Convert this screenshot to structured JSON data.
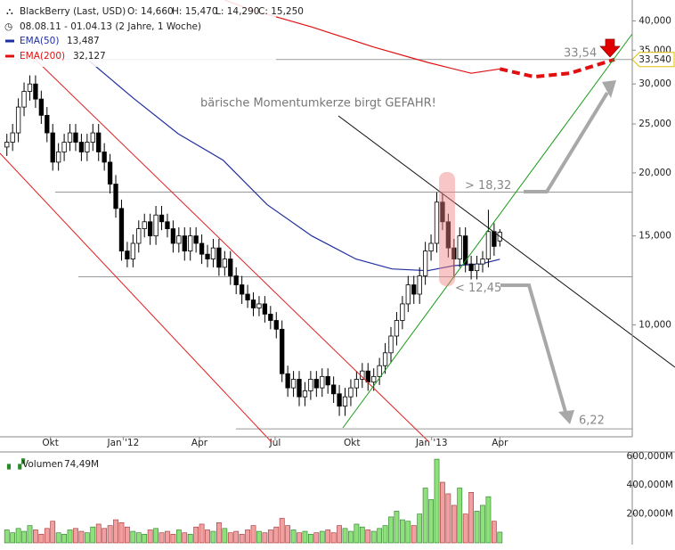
{
  "chart_data": {
    "type": "candlestick",
    "header": {
      "name": "BlackBerry (Last, USD)",
      "ohlc": [
        "O: 14,660",
        "H: 15,470",
        "L: 14,290",
        "C: 15,250"
      ],
      "range": "08.08.11 - 01.04.13 (2 Jahre, 1 Woche)"
    },
    "annotation": "bärische Momentumkerze birgt GEFAHR!",
    "log_scale": true,
    "xlim": [
      -1.2,
      109.1
    ],
    "ylim": [
      6.0,
      44
    ],
    "yticks": [
      {
        "value": 10,
        "label": "10,000"
      },
      {
        "value": 15,
        "label": "15,000"
      },
      {
        "value": 20,
        "label": "20,000"
      },
      {
        "value": 25,
        "label": "25,000"
      },
      {
        "value": 30,
        "label": "30,000"
      },
      {
        "value": 35,
        "label": "35,000"
      },
      {
        "value": 40,
        "label": "40,000"
      }
    ],
    "xticks": [
      {
        "value": 7.6,
        "label": "Okt"
      },
      {
        "value": 20.3,
        "label": "Jan '12"
      },
      {
        "value": 33.6,
        "label": "Apr"
      },
      {
        "value": 46.8,
        "label": "Jul"
      },
      {
        "value": 60.2,
        "label": "Okt"
      },
      {
        "value": 74.1,
        "label": "Jan '13"
      },
      {
        "value": 86,
        "label": "Apr"
      }
    ],
    "up_color": "#ffffff",
    "down_color": "#000000",
    "candles": [
      [
        22.5,
        23.9,
        21.6,
        23
      ],
      [
        23,
        25,
        22.1,
        24
      ],
      [
        24,
        28.1,
        23,
        27
      ],
      [
        27,
        30.2,
        25.9,
        29
      ],
      [
        29,
        31.2,
        27.8,
        30
      ],
      [
        30,
        31.2,
        26.9,
        28
      ],
      [
        28,
        29.1,
        25,
        26
      ],
      [
        26,
        27,
        23,
        24
      ],
      [
        24,
        25,
        20.2,
        21
      ],
      [
        21,
        22.9,
        20.2,
        22
      ],
      [
        22,
        23.9,
        21.1,
        23
      ],
      [
        23,
        25,
        22.1,
        24
      ],
      [
        24,
        25,
        22.1,
        23
      ],
      [
        23,
        23.9,
        21.1,
        22
      ],
      [
        22,
        23.9,
        21.1,
        23
      ],
      [
        23,
        25,
        22.1,
        24
      ],
      [
        24,
        25,
        21.1,
        22
      ],
      [
        22,
        22.9,
        20.2,
        21
      ],
      [
        21,
        21.8,
        18.2,
        19
      ],
      [
        19,
        19.8,
        16.3,
        17
      ],
      [
        17,
        17.7,
        13.4,
        14
      ],
      [
        14,
        14.6,
        13,
        13.5
      ],
      [
        13.5,
        15.1,
        13,
        14.5
      ],
      [
        14.5,
        16.1,
        13.9,
        15.5
      ],
      [
        15.5,
        16.6,
        14.9,
        16
      ],
      [
        16,
        16.6,
        14.4,
        15
      ],
      [
        15,
        17.2,
        14.4,
        16.5
      ],
      [
        16.5,
        17.2,
        15.4,
        16
      ],
      [
        16,
        16.6,
        14.9,
        15.5
      ],
      [
        15.5,
        16.1,
        13.9,
        14.5
      ],
      [
        14.5,
        15.6,
        13.9,
        15
      ],
      [
        15,
        15.6,
        13.4,
        14
      ],
      [
        14,
        15.6,
        13.4,
        15
      ],
      [
        15,
        15.6,
        13.9,
        14.5
      ],
      [
        14.5,
        15.1,
        13.2,
        13.8
      ],
      [
        13.8,
        14.4,
        13,
        13.5
      ],
      [
        13.5,
        14.8,
        13,
        14.2
      ],
      [
        14.2,
        14.8,
        12.5,
        13
      ],
      [
        13,
        14,
        12.5,
        13.5
      ],
      [
        13.5,
        14,
        12,
        12.5
      ],
      [
        12.5,
        13,
        11.5,
        12
      ],
      [
        12,
        12.5,
        11,
        11.5
      ],
      [
        11.5,
        12,
        10.8,
        11.2
      ],
      [
        11.2,
        11.6,
        10.4,
        10.8
      ],
      [
        10.8,
        11.4,
        10.4,
        11
      ],
      [
        11,
        11.4,
        10.1,
        10.5
      ],
      [
        10.5,
        10.9,
        9.8,
        10.2
      ],
      [
        10.2,
        10.6,
        9.4,
        9.8
      ],
      [
        9.8,
        10.2,
        7.7,
        8
      ],
      [
        8,
        8.3,
        7.2,
        7.5
      ],
      [
        7.5,
        8.1,
        7.2,
        7.8
      ],
      [
        7.8,
        8.1,
        6.9,
        7.2
      ],
      [
        7.2,
        7.7,
        6.9,
        7.4
      ],
      [
        7.4,
        8.1,
        7.1,
        7.8
      ],
      [
        7.8,
        8.1,
        7.2,
        7.5
      ],
      [
        7.5,
        8.2,
        7.2,
        7.9
      ],
      [
        7.9,
        8.2,
        7.3,
        7.6
      ],
      [
        7.6,
        7.9,
        7,
        7.3
      ],
      [
        7.3,
        7.6,
        6.6,
        6.9
      ],
      [
        6.9,
        7.5,
        6.6,
        7.2
      ],
      [
        7.2,
        7.8,
        6.9,
        7.5
      ],
      [
        7.5,
        8.1,
        7.2,
        7.8
      ],
      [
        7.8,
        8.4,
        7.5,
        8.1
      ],
      [
        8.1,
        8.4,
        7.4,
        7.7
      ],
      [
        7.7,
        8.2,
        7.4,
        7.9
      ],
      [
        7.9,
        8.6,
        7.6,
        8.3
      ],
      [
        8.3,
        9.2,
        8,
        8.8
      ],
      [
        8.8,
        9.9,
        8.4,
        9.5
      ],
      [
        9.5,
        10.6,
        9.1,
        10.2
      ],
      [
        10.2,
        11.4,
        9.8,
        11
      ],
      [
        11,
        12.5,
        10.6,
        12
      ],
      [
        12,
        12.5,
        11,
        11.5
      ],
      [
        11.5,
        13,
        11,
        12.5
      ],
      [
        12.5,
        14.6,
        12,
        14
      ],
      [
        14,
        15.1,
        13.4,
        14.5
      ],
      [
        14.5,
        18.3,
        13.9,
        17.5
      ],
      [
        17.5,
        18.2,
        15.4,
        16
      ],
      [
        16,
        16.6,
        13.6,
        14.2
      ],
      [
        14.2,
        14.8,
        12.4,
        13.5
      ],
      [
        13.5,
        15.6,
        13,
        15
      ],
      [
        15,
        15.6,
        12.7,
        13.2
      ],
      [
        13.2,
        13.7,
        12.3,
        12.8
      ],
      [
        12.8,
        13.7,
        12.3,
        13.2
      ],
      [
        13.2,
        14,
        12.7,
        13.5
      ],
      [
        13.5,
        16.9,
        13,
        15.3
      ],
      [
        15.3,
        15.9,
        13.7,
        14.3
      ],
      [
        14.66,
        15.47,
        14.29,
        15.25
      ]
    ],
    "series": [
      {
        "name": "EMA(50)",
        "last_label": "13,487",
        "color": "#1f2fa0",
        "x": [
          14.4,
          22.1,
          29.9,
          37.7,
          45.4,
          53.2,
          60.9,
          67.2,
          73.4,
          78,
          82.7,
          86
        ],
        "values": [
          33.3,
          28.1,
          23.9,
          21.2,
          17.3,
          15,
          13.5,
          12.9,
          12.8,
          13.1,
          13.2,
          13.487
        ]
      },
      {
        "name": "EMA(200)",
        "last_label": "32,127",
        "color": "#e01010",
        "x": [
          38,
          42.3,
          53.2,
          64,
          73.4,
          81,
          86
        ],
        "values": [
          44,
          42.2,
          38.9,
          35.5,
          33.1,
          31.5,
          32.127
        ]
      },
      {
        "color": "#e01010",
        "dashed": true,
        "x": [
          86,
          92,
          98.2,
          106
        ],
        "values": [
          32.127,
          31,
          31.5,
          33.54
        ]
      }
    ],
    "levels": [
      {
        "value": 33.54,
        "label": "33,54"
      },
      {
        "value": 18.32,
        "label": "> 18,32"
      },
      {
        "value": 12.45,
        "label": "< 12,45"
      },
      {
        "value": 6.22,
        "label": "6,22"
      }
    ],
    "price_marker": {
      "value": 33.54,
      "label": "33,540"
    },
    "volume": {
      "title": "Volumen",
      "last_label": "74,49M",
      "ylim": [
        0,
        630
      ],
      "yticks": [
        {
          "value": 200,
          "label": "200,000M"
        },
        {
          "value": 400,
          "label": "400,000M"
        },
        {
          "value": 600,
          "label": "600,000M"
        }
      ],
      "up_color": "#8ee07a",
      "down_color": "#f0a0a0",
      "values": [
        90,
        70,
        100,
        80,
        120,
        90,
        60,
        100,
        150,
        70,
        60,
        90,
        100,
        80,
        70,
        110,
        130,
        100,
        120,
        160,
        140,
        110,
        80,
        70,
        60,
        90,
        100,
        70,
        80,
        60,
        90,
        70,
        60,
        110,
        130,
        90,
        80,
        140,
        100,
        70,
        80,
        60,
        90,
        120,
        80,
        70,
        90,
        110,
        170,
        120,
        90,
        70,
        80,
        60,
        70,
        80,
        90,
        70,
        120,
        100,
        80,
        130,
        110,
        90,
        80,
        100,
        120,
        180,
        220,
        160,
        150,
        120,
        200,
        380,
        300,
        580,
        420,
        340,
        260,
        380,
        200,
        350,
        220,
        260,
        320,
        150,
        74.49
      ]
    }
  }
}
